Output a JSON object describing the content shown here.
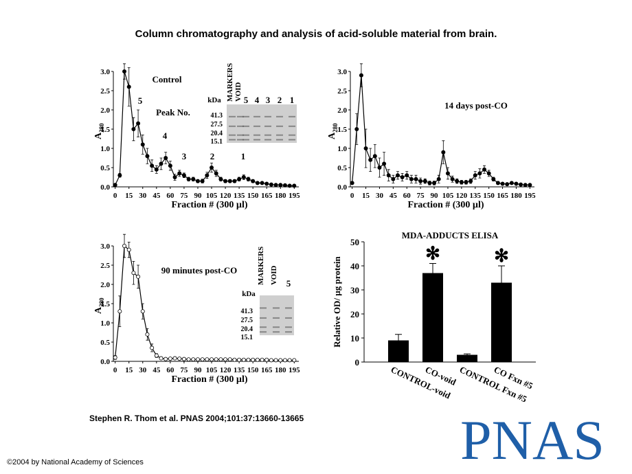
{
  "title": "Column chromatography and analysis of acid-soluble material from brain.",
  "citation": "Stephen R. Thom et al. PNAS 2004;101:37:13660-13665",
  "copyright": "©2004 by National Academy of Sciences",
  "logo": "PNAS",
  "chart_data": [
    {
      "type": "line",
      "x_label": "Fraction # (300 µl)",
      "y_label": "A",
      "y_label_subscript": "280",
      "annotations": [
        "Control",
        "Peak No.",
        "5",
        "4",
        "3",
        "2",
        "1"
      ],
      "gel": {
        "unit_label": "kDa",
        "markers": [
          "41.3",
          "27.5",
          "20.4",
          "15.1"
        ],
        "lanes": [
          "MARKERS",
          "VOID",
          "5",
          "4",
          "3",
          "2",
          "1"
        ]
      },
      "x": [
        0,
        5,
        10,
        15,
        20,
        25,
        30,
        35,
        40,
        45,
        50,
        55,
        60,
        65,
        70,
        75,
        80,
        85,
        90,
        95,
        100,
        105,
        110,
        115,
        120,
        125,
        130,
        135,
        140,
        145,
        150,
        155,
        160,
        165,
        170,
        175,
        180,
        185,
        190,
        195
      ],
      "series": [
        {
          "color": "#000000",
          "marker_fill": "#000000",
          "values": [
            0.05,
            0.3,
            3.0,
            2.6,
            1.5,
            1.65,
            1.1,
            0.8,
            0.55,
            0.45,
            0.6,
            0.75,
            0.55,
            0.25,
            0.35,
            0.3,
            0.2,
            0.2,
            0.15,
            0.15,
            0.3,
            0.5,
            0.35,
            0.2,
            0.15,
            0.15,
            0.15,
            0.2,
            0.25,
            0.2,
            0.15,
            0.1,
            0.1,
            0.08,
            0.06,
            0.05,
            0.05,
            0.04,
            0.03,
            0.03
          ],
          "errors": [
            0.02,
            0.05,
            0.2,
            0.5,
            0.3,
            0.35,
            0.25,
            0.2,
            0.15,
            0.1,
            0.15,
            0.15,
            0.12,
            0.08,
            0.08,
            0.06,
            0.05,
            0.05,
            0.04,
            0.05,
            0.08,
            0.12,
            0.08,
            0.05,
            0.04,
            0.04,
            0.04,
            0.05,
            0.06,
            0.05,
            0.04,
            0.03,
            0.02,
            0.02,
            0.02,
            0.02,
            0.02,
            0.02,
            0.01,
            0.01
          ]
        }
      ],
      "xlim": [
        -2,
        200
      ],
      "xticks": [
        0,
        15,
        30,
        45,
        60,
        75,
        90,
        105,
        120,
        135,
        150,
        165,
        180,
        195
      ],
      "ylim": [
        0,
        3.0
      ],
      "yticks": [
        {
          "value": 0,
          "label": "0.0"
        },
        {
          "value": 0.5,
          "label": "0.5"
        },
        {
          "value": 1,
          "label": "1.0"
        },
        {
          "value": 1.5,
          "label": "1.5"
        },
        {
          "value": 2,
          "label": "2.0"
        },
        {
          "value": 2.5,
          "label": "2.5"
        },
        {
          "value": 3,
          "label": "3.0"
        }
      ]
    },
    {
      "type": "line",
      "x_label": "Fraction # (300 µl)",
      "y_label": "A",
      "y_label_subscript": "280",
      "annotations": [
        "14 days post-CO"
      ],
      "x": [
        0,
        5,
        10,
        15,
        20,
        25,
        30,
        35,
        40,
        45,
        50,
        55,
        60,
        65,
        70,
        75,
        80,
        85,
        90,
        95,
        100,
        105,
        110,
        115,
        120,
        125,
        130,
        135,
        140,
        145,
        150,
        155,
        160,
        165,
        170,
        175,
        180,
        185,
        190,
        195
      ],
      "series": [
        {
          "color": "#000000",
          "marker_fill": "#000000",
          "values": [
            0.1,
            1.5,
            2.9,
            1.0,
            0.7,
            0.8,
            0.5,
            0.6,
            0.3,
            0.2,
            0.3,
            0.25,
            0.3,
            0.2,
            0.2,
            0.15,
            0.15,
            0.1,
            0.1,
            0.2,
            0.9,
            0.35,
            0.2,
            0.15,
            0.12,
            0.12,
            0.15,
            0.3,
            0.35,
            0.45,
            0.35,
            0.2,
            0.1,
            0.08,
            0.07,
            0.1,
            0.08,
            0.06,
            0.05,
            0.05
          ],
          "errors": [
            0.02,
            0.4,
            0.3,
            0.5,
            0.3,
            0.3,
            0.25,
            0.3,
            0.15,
            0.1,
            0.1,
            0.1,
            0.1,
            0.1,
            0.1,
            0.08,
            0.06,
            0.05,
            0.05,
            0.1,
            0.3,
            0.15,
            0.08,
            0.06,
            0.05,
            0.05,
            0.06,
            0.1,
            0.12,
            0.1,
            0.08,
            0.05,
            0.04,
            0.03,
            0.03,
            0.03,
            0.03,
            0.02,
            0.02,
            0.02
          ]
        }
      ],
      "xlim": [
        -2,
        200
      ],
      "xticks": [
        0,
        15,
        30,
        45,
        60,
        75,
        90,
        105,
        120,
        135,
        150,
        165,
        180,
        195
      ],
      "ylim": [
        0,
        3.0
      ],
      "yticks": [
        {
          "value": 0,
          "label": "0.0"
        },
        {
          "value": 0.5,
          "label": "0.5"
        },
        {
          "value": 1,
          "label": "1.0"
        },
        {
          "value": 1.5,
          "label": "1.5"
        },
        {
          "value": 2,
          "label": "2.0"
        },
        {
          "value": 2.5,
          "label": "2.5"
        },
        {
          "value": 3,
          "label": "3.0"
        }
      ]
    },
    {
      "type": "line",
      "x_label": "Fraction # (300 µl)",
      "y_label": "A",
      "y_label_subscript": "280",
      "annotations": [
        "90 minutes post-CO"
      ],
      "gel": {
        "unit_label": "kDa",
        "markers": [
          "41.3",
          "27.5",
          "20.4",
          "15.1"
        ],
        "lanes": [
          "MARKERS",
          "VOID",
          "5"
        ]
      },
      "x": [
        0,
        5,
        10,
        15,
        20,
        25,
        30,
        35,
        40,
        45,
        50,
        55,
        60,
        65,
        70,
        75,
        80,
        85,
        90,
        95,
        100,
        105,
        110,
        115,
        120,
        125,
        130,
        135,
        140,
        145,
        150,
        155,
        160,
        165,
        170,
        175,
        180,
        185,
        190,
        195
      ],
      "series": [
        {
          "color": "#000000",
          "marker_fill": "#ffffff",
          "values": [
            0.1,
            1.3,
            3.0,
            2.9,
            2.3,
            2.2,
            1.3,
            0.7,
            0.35,
            0.15,
            0.08,
            0.06,
            0.07,
            0.08,
            0.07,
            0.06,
            0.05,
            0.05,
            0.05,
            0.05,
            0.05,
            0.05,
            0.05,
            0.05,
            0.05,
            0.05,
            0.04,
            0.04,
            0.04,
            0.04,
            0.04,
            0.04,
            0.04,
            0.04,
            0.03,
            0.03,
            0.03,
            0.03,
            0.03,
            0.03
          ],
          "errors": [
            0.05,
            0.4,
            0.3,
            0.2,
            0.3,
            0.3,
            0.2,
            0.15,
            0.1,
            0.05,
            0.03,
            0.02,
            0.02,
            0.02,
            0.02,
            0.02,
            0.01,
            0.01,
            0.01,
            0.01,
            0.01,
            0.01,
            0.01,
            0.01,
            0.01,
            0.01,
            0.01,
            0.01,
            0.01,
            0.01,
            0.01,
            0.01,
            0.01,
            0.01,
            0.01,
            0.01,
            0.01,
            0.01,
            0.01,
            0.01
          ]
        }
      ],
      "xlim": [
        -2,
        200
      ],
      "xticks": [
        0,
        15,
        30,
        45,
        60,
        75,
        90,
        105,
        120,
        135,
        150,
        165,
        180,
        195
      ],
      "ylim": [
        0,
        3.0
      ],
      "yticks": [
        {
          "value": 0,
          "label": "0.0"
        },
        {
          "value": 0.5,
          "label": "0.5"
        },
        {
          "value": 1,
          "label": "1.0"
        },
        {
          "value": 1.5,
          "label": "1.5"
        },
        {
          "value": 2,
          "label": "2.0"
        },
        {
          "value": 2.5,
          "label": "2.5"
        },
        {
          "value": 3,
          "label": "3.0"
        }
      ]
    },
    {
      "type": "bar",
      "title": "MDA-ADDUCTS ELISA",
      "y_label": "Relative OD/ µg protein",
      "categories": [
        "CONTROL-void",
        "CO-void",
        "CONTROL Fxn #5",
        "CO Fxn #5"
      ],
      "values": [
        9,
        37,
        3,
        33
      ],
      "errors": [
        2.5,
        4,
        0.4,
        7
      ],
      "value_markers": [
        null,
        "✻",
        null,
        "✻"
      ],
      "color": "#000000",
      "ylim": [
        0,
        50
      ],
      "yticks": [
        0,
        10,
        20,
        30,
        40,
        50
      ]
    }
  ]
}
